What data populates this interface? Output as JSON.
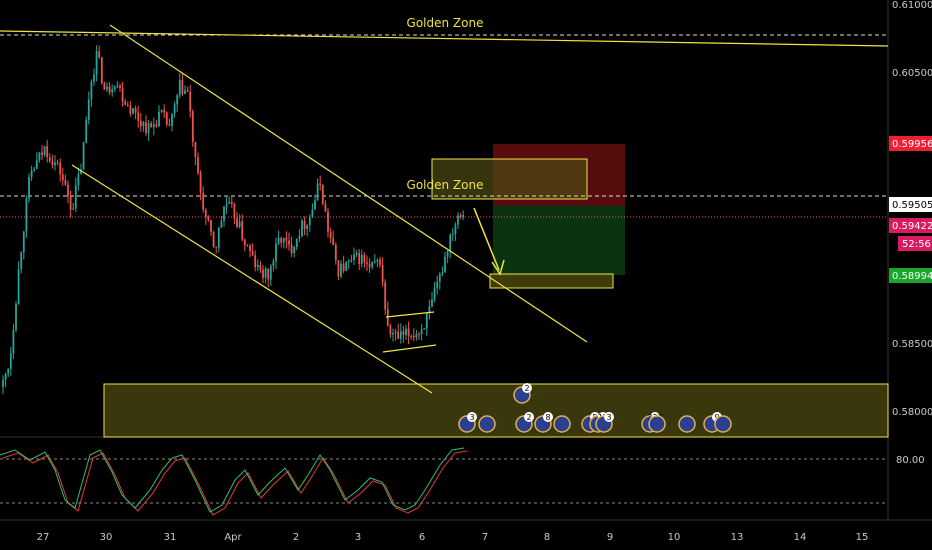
{
  "colors": {
    "background": "#000000",
    "bull": "#26a69a",
    "bear": "#ef5350",
    "trendline": "#f0e442",
    "zone_fill": "#4d4a12",
    "stop_zone": "#6b0f0f",
    "target_zone": "#0b3a12",
    "axis_text": "#c8c8c8",
    "badge_red": "#ef1f35",
    "badge_green": "#1aa52b",
    "badge_pink": "#d81b60",
    "badge_white": "#ffffff",
    "stoch_k": "#2fbf71",
    "stoch_d": "#e53935"
  },
  "chart_data": {
    "type": "candlestick",
    "price_axis": {
      "ticks": [
        "0.61000",
        "0.60500",
        "0.59505",
        "0.58500",
        "0.58000"
      ],
      "ylim": [
        0.5775,
        0.6105
      ]
    },
    "time_axis": {
      "ticks": [
        "27",
        "30",
        "31",
        "Apr",
        "2",
        "3",
        "6",
        "7",
        "8",
        "9",
        "10",
        "13",
        "14",
        "15"
      ]
    },
    "price_badges": [
      {
        "label": "0.59956",
        "price": 0.59956,
        "style": "red"
      },
      {
        "label": "0.59505",
        "price": 0.59505,
        "style": "white"
      },
      {
        "label": "0.59422",
        "price": 0.59422,
        "style": "pink"
      },
      {
        "label": "52:56",
        "price": 0.5917,
        "style": "pink_timer"
      },
      {
        "label": "0.58994",
        "price": 0.58994,
        "style": "green"
      }
    ],
    "annotations": [
      {
        "text": "Golden Zone",
        "kind": "label_top"
      },
      {
        "text": "Golden Zone",
        "kind": "label_mid"
      }
    ],
    "stoch_axis": {
      "ticks": [
        "80.00"
      ],
      "ylim": [
        0,
        100
      ]
    },
    "event_markers": [
      "3",
      "2",
      "2",
      "8",
      "5",
      "12",
      "3",
      "333",
      "2",
      "9"
    ]
  }
}
